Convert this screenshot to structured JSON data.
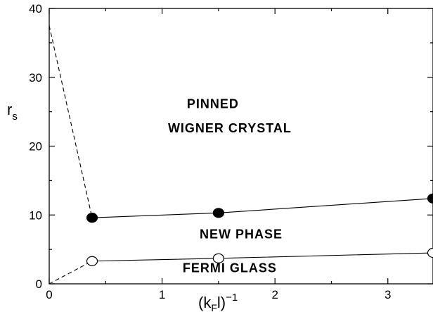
{
  "chart_data": {
    "type": "line",
    "title": "",
    "xlabel": "(k_F l)^-1",
    "ylabel": "r_s",
    "xlim": [
      0,
      3.4
    ],
    "ylim": [
      0,
      40
    ],
    "grid": false,
    "legend": "none",
    "x_ticks": [
      0,
      1,
      2,
      3
    ],
    "y_ticks": [
      0,
      10,
      20,
      30,
      40
    ],
    "x_tick_labels": [
      "0",
      "1",
      "2",
      "3"
    ],
    "y_tick_labels": [
      "0",
      "10",
      "20",
      "30",
      "40"
    ],
    "axis_labels": {
      "x_main": "(k",
      "x_sub": "F",
      "x_close": "l)",
      "x_sup": "−1",
      "y_main": "r",
      "y_sub": "s"
    },
    "series": [
      {
        "values_x": [
          0.38,
          1.5,
          3.4
        ],
        "values_y": [
          9.6,
          10.3,
          12.4
        ],
        "marker": "filled-circle",
        "line_style": "solid",
        "color": "#000000"
      },
      {
        "values_x": [
          0.38,
          1.5,
          3.4
        ],
        "values_y": [
          3.3,
          3.7,
          4.5
        ],
        "marker": "open-circle",
        "line_style": "solid",
        "color": "#000000"
      }
    ],
    "extrapolations": [
      {
        "x": [
          0,
          0.38
        ],
        "y": [
          37.5,
          9.6
        ],
        "line_style": "dashed"
      },
      {
        "x": [
          0,
          0.38
        ],
        "y": [
          0,
          3.3
        ],
        "line_style": "dashed"
      }
    ],
    "region_labels": [
      {
        "text": "PINNED",
        "x": 1.45,
        "y": 25.5
      },
      {
        "text": "WIGNER  CRYSTAL",
        "x": 1.6,
        "y": 22.0
      },
      {
        "text": "NEW PHASE",
        "x": 1.7,
        "y": 6.6
      },
      {
        "text": "FERMI GLASS",
        "x": 1.6,
        "y": 1.7
      }
    ]
  }
}
